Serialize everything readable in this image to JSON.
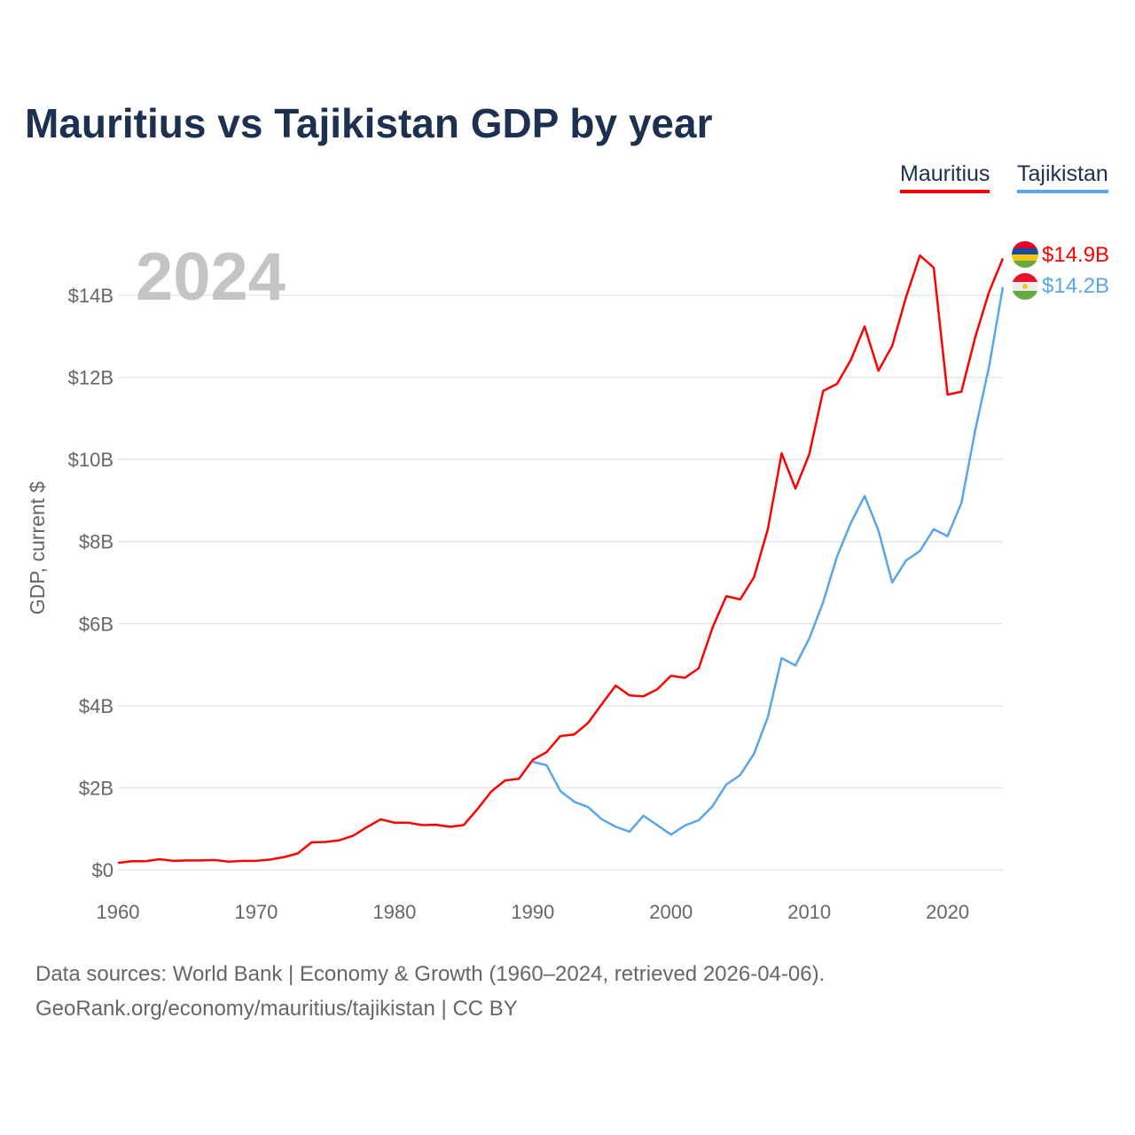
{
  "title": "Mauritius vs Tajikistan GDP by year",
  "legend": [
    {
      "label": "Mauritius",
      "color": "#ff0000"
    },
    {
      "label": "Tajikistan",
      "color": "#5aa5ea"
    }
  ],
  "year_label": "2024",
  "end_labels": [
    "$14.9B",
    "$14.2B"
  ],
  "footer": {
    "line1": "Data sources: World Bank | Economy & Growth (1960–2024, retrieved 2026-04-06).",
    "line2": "GeoRank.org/economy/mauritius/tajikistan | CC BY"
  },
  "chart_data": {
    "type": "line",
    "title": "Mauritius vs Tajikistan GDP by year",
    "ylabel": "GDP, current $",
    "xlabel": "",
    "xlim": [
      1960,
      2024
    ],
    "ylim": [
      0,
      15
    ],
    "x_ticks": [
      "1960",
      "1970",
      "1980",
      "1990",
      "2000",
      "2010",
      "2020"
    ],
    "y_ticks": [
      "$0",
      "$2B",
      "$4B",
      "$6B",
      "$8B",
      "$10B",
      "$12B",
      "$14B"
    ],
    "y_tick_values": [
      0,
      2,
      4,
      6,
      8,
      10,
      12,
      14
    ],
    "grid": true,
    "legend_position": "top-right",
    "series": [
      {
        "name": "Mauritius",
        "color": "#ff0000",
        "start_year": 1960,
        "values": [
          0.17,
          0.21,
          0.21,
          0.26,
          0.22,
          0.23,
          0.23,
          0.24,
          0.2,
          0.22,
          0.22,
          0.25,
          0.31,
          0.4,
          0.67,
          0.68,
          0.72,
          0.83,
          1.04,
          1.23,
          1.15,
          1.15,
          1.09,
          1.1,
          1.05,
          1.09,
          1.48,
          1.91,
          2.18,
          2.22,
          2.68,
          2.87,
          3.26,
          3.3,
          3.58,
          4.04,
          4.49,
          4.25,
          4.23,
          4.4,
          4.73,
          4.68,
          4.91,
          5.9,
          6.67,
          6.59,
          7.13,
          8.3,
          10.15,
          9.29,
          10.13,
          11.67,
          11.84,
          12.42,
          13.24,
          12.16,
          12.77,
          13.96,
          14.97,
          14.67,
          11.58,
          11.65,
          12.98,
          14.08,
          14.9
        ]
      },
      {
        "name": "Tajikistan",
        "color": "#5aa5ea",
        "start_year": 1990,
        "values": [
          2.63,
          2.55,
          1.92,
          1.66,
          1.53,
          1.23,
          1.05,
          0.93,
          1.32,
          1.09,
          0.86,
          1.08,
          1.21,
          1.55,
          2.08,
          2.31,
          2.83,
          3.72,
          5.16,
          4.98,
          5.64,
          6.52,
          7.63,
          8.45,
          9.11,
          8.27,
          7.0,
          7.54,
          7.77,
          8.3,
          8.13,
          8.94,
          10.71,
          12.26,
          14.2
        ]
      }
    ]
  }
}
